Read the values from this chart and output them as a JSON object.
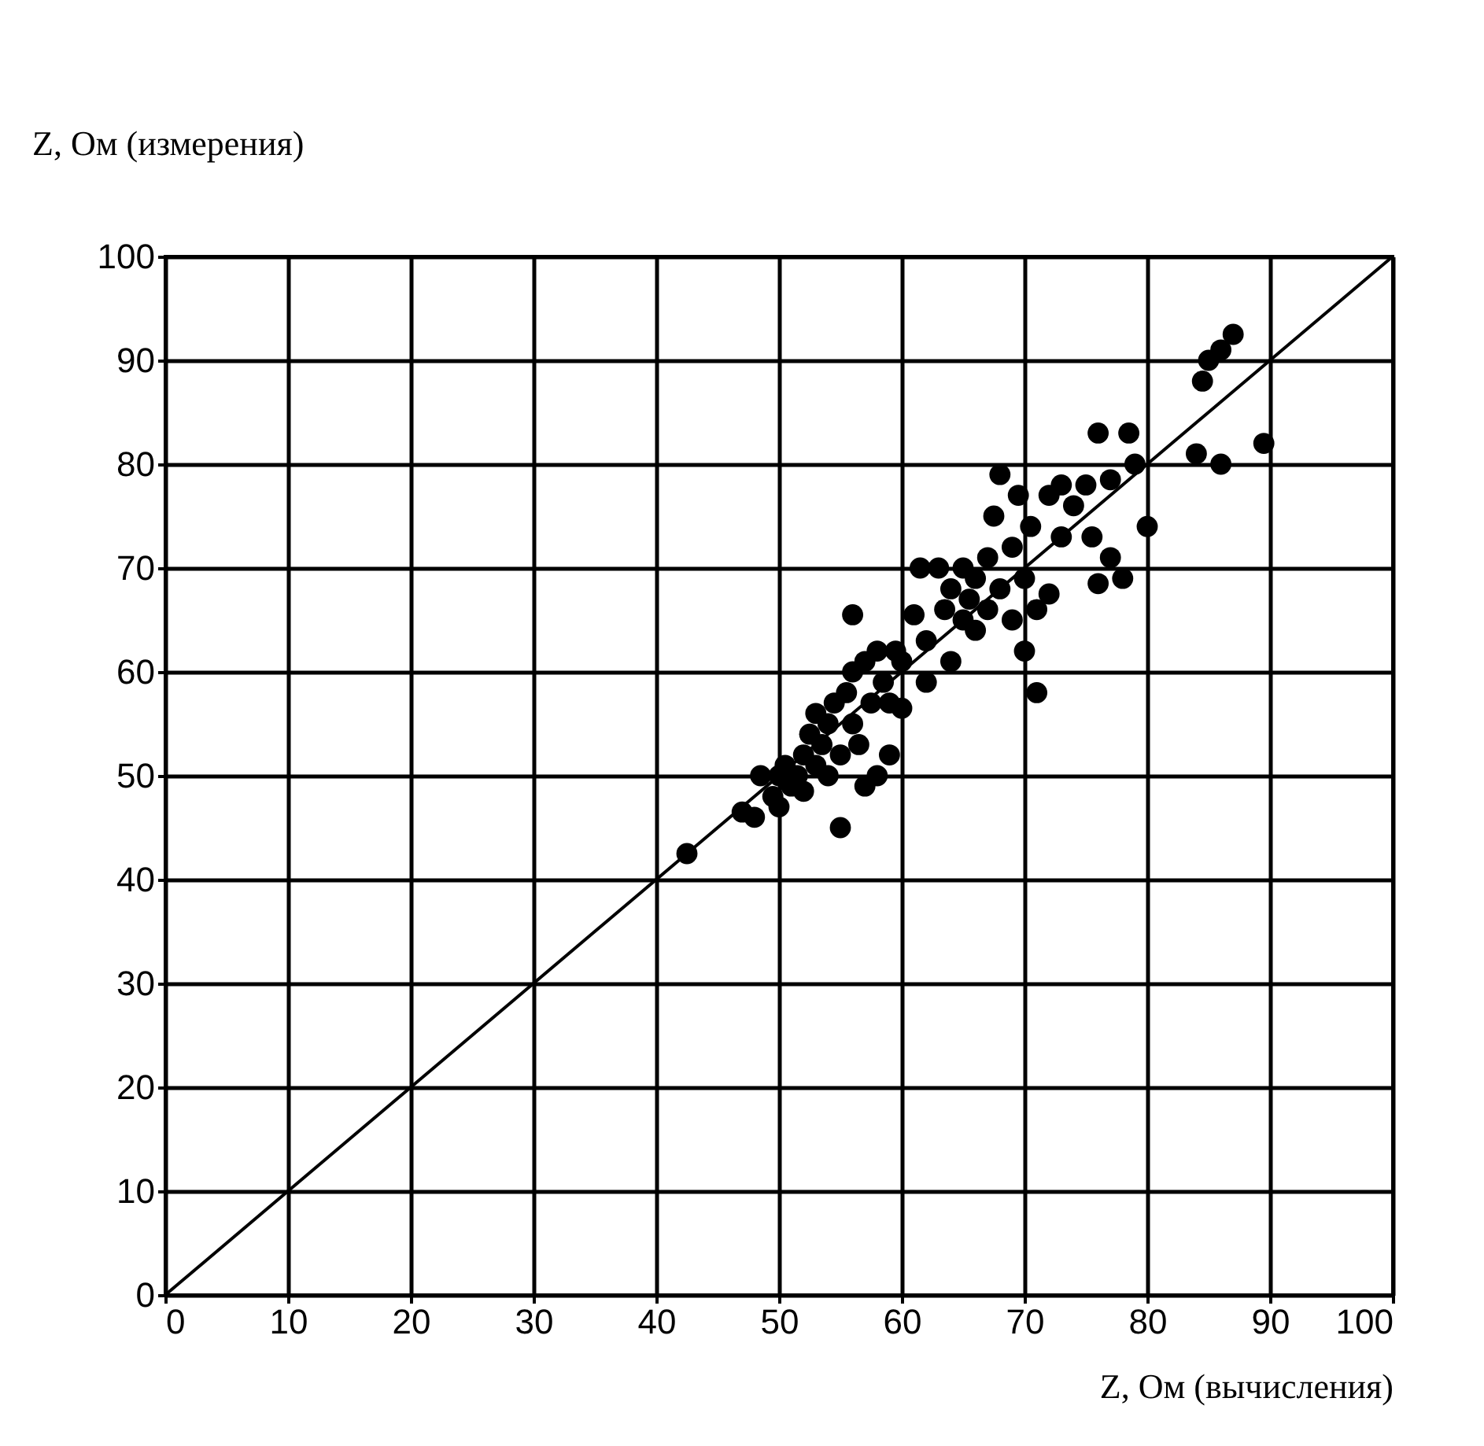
{
  "chart_data": {
    "type": "scatter",
    "xlabel": "Z, Ом (вычисления)",
    "ylabel": "Z, Ом (измерения)",
    "xlim": [
      0,
      100
    ],
    "ylim": [
      0,
      100
    ],
    "xticks": [
      0,
      10,
      20,
      30,
      40,
      50,
      60,
      70,
      80,
      90,
      100
    ],
    "yticks": [
      0,
      10,
      20,
      30,
      40,
      50,
      60,
      70,
      80,
      90,
      100
    ],
    "grid": true,
    "marker": "circle",
    "series": [
      {
        "color": "#000000",
        "x": [
          42.5,
          47,
          48,
          48.5,
          49.5,
          50,
          50,
          50.5,
          51,
          51.5,
          52,
          52,
          52.5,
          53,
          53,
          53.5,
          54,
          54,
          54.5,
          55,
          55,
          55.5,
          56,
          56,
          56,
          56.5,
          57,
          57,
          57.5,
          58,
          58,
          58.5,
          59,
          59,
          59.5,
          60,
          60,
          61,
          61.5,
          62,
          62,
          63,
          63.5,
          64,
          64,
          65,
          65,
          65.5,
          66,
          66,
          67,
          67,
          67.5,
          68,
          68,
          69,
          69,
          69.5,
          70,
          70,
          70.5,
          71,
          71,
          72,
          72,
          73,
          73,
          74,
          75,
          75.5,
          76,
          76,
          77,
          77,
          78,
          78.5,
          79,
          80,
          84,
          84.5,
          85,
          86,
          86,
          87,
          89.5
        ],
        "values": [
          42.5,
          46.5,
          46,
          50,
          48,
          47,
          50,
          51,
          49,
          50,
          52,
          48.5,
          54,
          51,
          56,
          53,
          55,
          50,
          57,
          45,
          52,
          58,
          65.5,
          55,
          60,
          53,
          61,
          49,
          57,
          62,
          50,
          59,
          52,
          57,
          62,
          56.5,
          61,
          65.5,
          70,
          59,
          63,
          70,
          66,
          61,
          68,
          70,
          65,
          67,
          69,
          64,
          71,
          66,
          75,
          79,
          68,
          72,
          65,
          77,
          62,
          69,
          74,
          58,
          66,
          67.5,
          77,
          73,
          78,
          76,
          78,
          73,
          68.5,
          83,
          71,
          78.5,
          69,
          83,
          80,
          74,
          81,
          88,
          90,
          80,
          91,
          92.5,
          82
        ]
      },
      {
        "type": "line",
        "color": "#000000",
        "marker": "none",
        "x": [
          0,
          100
        ],
        "values": [
          0,
          100
        ]
      }
    ]
  }
}
